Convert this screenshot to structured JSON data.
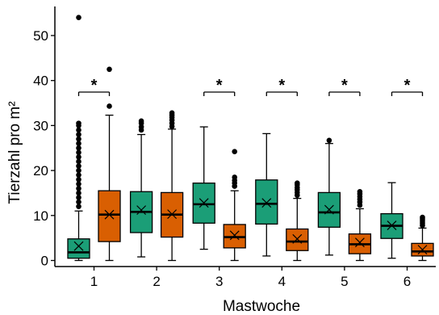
{
  "chart_data": {
    "type": "box",
    "xlabel": "Mastwoche",
    "ylabel": "Tierzahl pro m²",
    "ylim": [
      -1,
      56
    ],
    "yticks": [
      0,
      10,
      20,
      30,
      40,
      50
    ],
    "categories": [
      "1",
      "2",
      "3",
      "4",
      "5",
      "6"
    ],
    "grid": false,
    "legend": "none",
    "series": [
      {
        "color": "#1b9e77",
        "boxes": [
          {
            "min": 0,
            "q1": 0.5,
            "median": 1.8,
            "q3": 4.8,
            "max": 11,
            "mean": 3.2,
            "outliers": [
              12,
              13,
              14,
              15,
              16,
              17,
              18,
              19,
              20,
              21,
              22,
              23,
              24,
              25,
              26,
              27,
              28,
              29,
              30,
              30.5,
              54
            ]
          },
          {
            "min": 0.8,
            "q1": 6.2,
            "median": 10.8,
            "q3": 15.3,
            "max": 28,
            "mean": 11.2,
            "outliers": [
              29,
              29.7,
              30.5,
              31
            ]
          },
          {
            "min": 2.5,
            "q1": 8.3,
            "median": 12.5,
            "q3": 17.2,
            "max": 29.7,
            "mean": 12.8,
            "outliers": []
          },
          {
            "min": 1,
            "q1": 8.1,
            "median": 12.6,
            "q3": 17.9,
            "max": 28.2,
            "mean": 12.8,
            "outliers": []
          },
          {
            "min": 1.2,
            "q1": 7.4,
            "median": 10.7,
            "q3": 15.1,
            "max": 26,
            "mean": 11.3,
            "outliers": [
              26.7
            ]
          },
          {
            "min": 0.5,
            "q1": 4.9,
            "median": 7.7,
            "q3": 10.4,
            "max": 17.3,
            "mean": 7.8,
            "outliers": []
          }
        ]
      },
      {
        "color": "#d95f02",
        "boxes": [
          {
            "min": 0,
            "q1": 4.2,
            "median": 10.2,
            "q3": 15.5,
            "max": 32.3,
            "mean": 10.2,
            "outliers": [
              34.3,
              42.5
            ]
          },
          {
            "min": 0,
            "q1": 5.2,
            "median": 10.2,
            "q3": 15.1,
            "max": 29.2,
            "mean": 10.3,
            "outliers": [
              29.8,
              30.5,
              31.2,
              31.8,
              32.3,
              32.8
            ]
          },
          {
            "min": 0,
            "q1": 2.8,
            "median": 5.2,
            "q3": 8.0,
            "max": 15.5,
            "mean": 5.6,
            "outliers": [
              16.5,
              17.2,
              17.8,
              18.5,
              24.2
            ]
          },
          {
            "min": 0,
            "q1": 2.2,
            "median": 4.2,
            "q3": 7.0,
            "max": 13.8,
            "mean": 4.8,
            "outliers": [
              14.5,
              15.1,
              15.7,
              16.2,
              16.8,
              17.2
            ]
          },
          {
            "min": 0,
            "q1": 1.5,
            "median": 3.6,
            "q3": 5.9,
            "max": 11.5,
            "mean": 4.0,
            "outliers": [
              12.3,
              13,
              13.6,
              14.2,
              14.8,
              15.3
            ]
          },
          {
            "min": 0,
            "q1": 1.0,
            "median": 2.0,
            "q3": 3.8,
            "max": 7.2,
            "mean": 2.4,
            "outliers": [
              7.8,
              8.3,
              8.8,
              9.2,
              9.6
            ]
          }
        ]
      }
    ],
    "annotations": [
      {
        "category": "1",
        "text": "*"
      },
      {
        "category": "3",
        "text": "*"
      },
      {
        "category": "4",
        "text": "*"
      },
      {
        "category": "5",
        "text": "*"
      },
      {
        "category": "6",
        "text": "*"
      }
    ]
  }
}
